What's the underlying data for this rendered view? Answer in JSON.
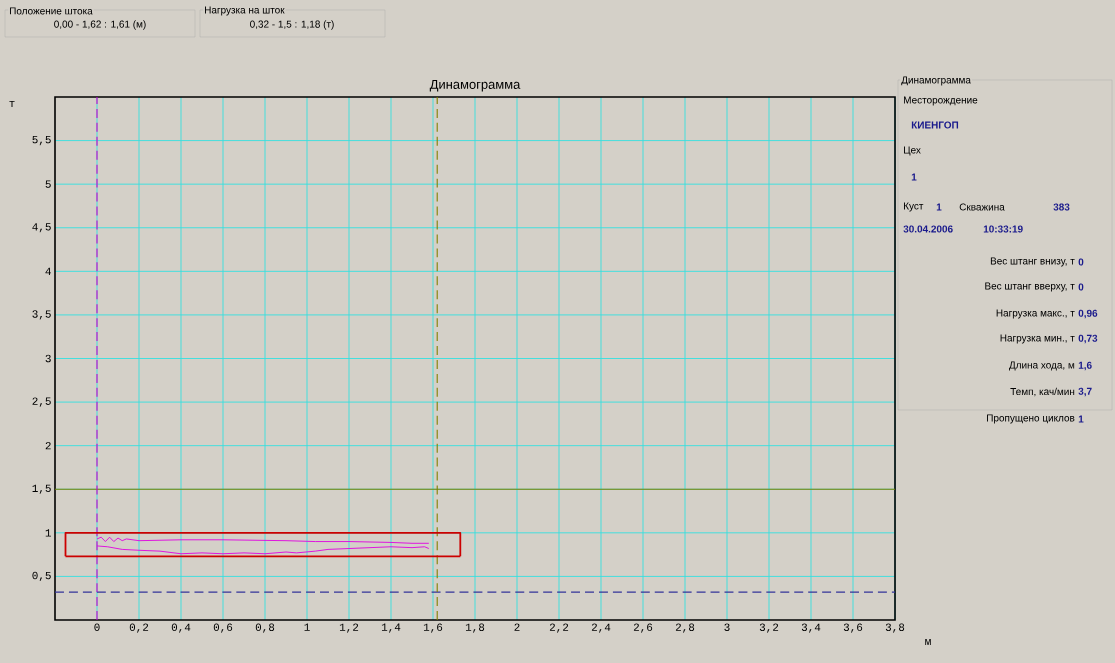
{
  "chart_data": {
    "type": "line",
    "title": "Динамограмма",
    "xlabel": "м",
    "ylabel": "т",
    "xlim": [
      -0.2,
      3.8
    ],
    "ylim": [
      0,
      6
    ],
    "xticks": [
      0,
      {
        "value": 0.2,
        "label": "0,2"
      },
      {
        "value": 0.4,
        "label": "0,4"
      },
      {
        "value": 0.6,
        "label": "0,6"
      },
      {
        "value": 0.8,
        "label": "0,8"
      },
      1,
      {
        "value": 1.2,
        "label": "1,2"
      },
      {
        "value": 1.4,
        "label": "1,4"
      },
      {
        "value": 1.6,
        "label": "1,6"
      },
      {
        "value": 1.8,
        "label": "1,8"
      },
      2,
      {
        "value": 2.2,
        "label": "2,2"
      },
      {
        "value": 2.4,
        "label": "2,4"
      },
      {
        "value": 2.6,
        "label": "2,6"
      },
      {
        "value": 2.8,
        "label": "2,8"
      },
      3,
      {
        "value": 3.2,
        "label": "3,2"
      },
      {
        "value": 3.4,
        "label": "3,4"
      },
      {
        "value": 3.6,
        "label": "3,6"
      },
      {
        "value": 3.8,
        "label": "3,8"
      }
    ],
    "yticks": [
      {
        "value": 0.5,
        "label": "0,5"
      },
      1,
      {
        "value": 1.5,
        "label": "1,5"
      },
      2,
      {
        "value": 2.5,
        "label": "2,5"
      },
      3,
      {
        "value": 3.5,
        "label": "3,5"
      },
      4,
      {
        "value": 4.5,
        "label": "4,5"
      },
      5,
      {
        "value": 5.5,
        "label": "5,5"
      }
    ],
    "grid": true,
    "series": [
      {
        "type": "line",
        "color": "#e000e0",
        "x": [
          0,
          0.02,
          0.04,
          0.06,
          0.08,
          0.1,
          0.12,
          0.14,
          0.2,
          0.4,
          0.6,
          0.9,
          1.04,
          1.2,
          1.4,
          1.5,
          1.56,
          1.58
        ],
        "values": [
          0.93,
          0.95,
          0.9,
          0.95,
          0.9,
          0.94,
          0.91,
          0.93,
          0.91,
          0.92,
          0.92,
          0.91,
          0.9,
          0.9,
          0.89,
          0.88,
          0.88,
          0.88
        ]
      },
      {
        "type": "line",
        "color": "#e000e0",
        "x": [
          0,
          0.05,
          0.12,
          0.2,
          0.3,
          0.4,
          0.5,
          0.6,
          0.7,
          0.8,
          0.9,
          0.95,
          1.04,
          1.1,
          1.2,
          1.3,
          1.4,
          1.5,
          1.56,
          1.58
        ],
        "values": [
          0.85,
          0.84,
          0.81,
          0.8,
          0.79,
          0.76,
          0.77,
          0.76,
          0.77,
          0.76,
          0.78,
          0.77,
          0.79,
          0.81,
          0.82,
          0.83,
          0.84,
          0.83,
          0.84,
          0.82
        ]
      },
      {
        "type": "line",
        "color": "#cc0000",
        "x": [
          -0.15,
          -0.15,
          1.73,
          1.73
        ],
        "values": [
          0.73,
          1.0,
          1.0,
          0.73
        ]
      },
      {
        "type": "line",
        "color": "#cc0000",
        "x": [
          -0.15,
          1.73
        ],
        "values": [
          0.73,
          0.73
        ]
      }
    ],
    "ref_lines": [
      {
        "axis": "y",
        "value": 1.5,
        "color": "#808000",
        "line_style": "solid"
      },
      {
        "axis": "y",
        "value": 0.32,
        "color": "#333399",
        "line_style": "dashed"
      },
      {
        "axis": "x",
        "value": 0,
        "color": "#cc00cc",
        "line_style": "dashed"
      },
      {
        "axis": "x",
        "value": 1.62,
        "color": "#808000",
        "line_style": "dashed"
      }
    ],
    "annotations": [
      "Положение штока",
      "0,00 - 1,62 : 1,61 (м)",
      "Нагрузка на шток",
      "0,32 - 1,5 : 1,18 (т)",
      "Динамограмма",
      "Месторождение",
      "КИЕНГОП",
      "Цех",
      "1",
      "Куст",
      "1",
      "Скважина",
      "383",
      "30.04.2006",
      "10:33:19",
      "Вес штанг внизу, т",
      "0",
      "Вес штанг вверху, т",
      "0",
      "Нагрузка макс., т",
      "0,96",
      "Нагрузка мин., т",
      "0,73",
      "Длина хода, м",
      "1,6",
      "Темп, кач/мин",
      "3,7",
      "Пропущено циклов",
      "1"
    ]
  }
}
